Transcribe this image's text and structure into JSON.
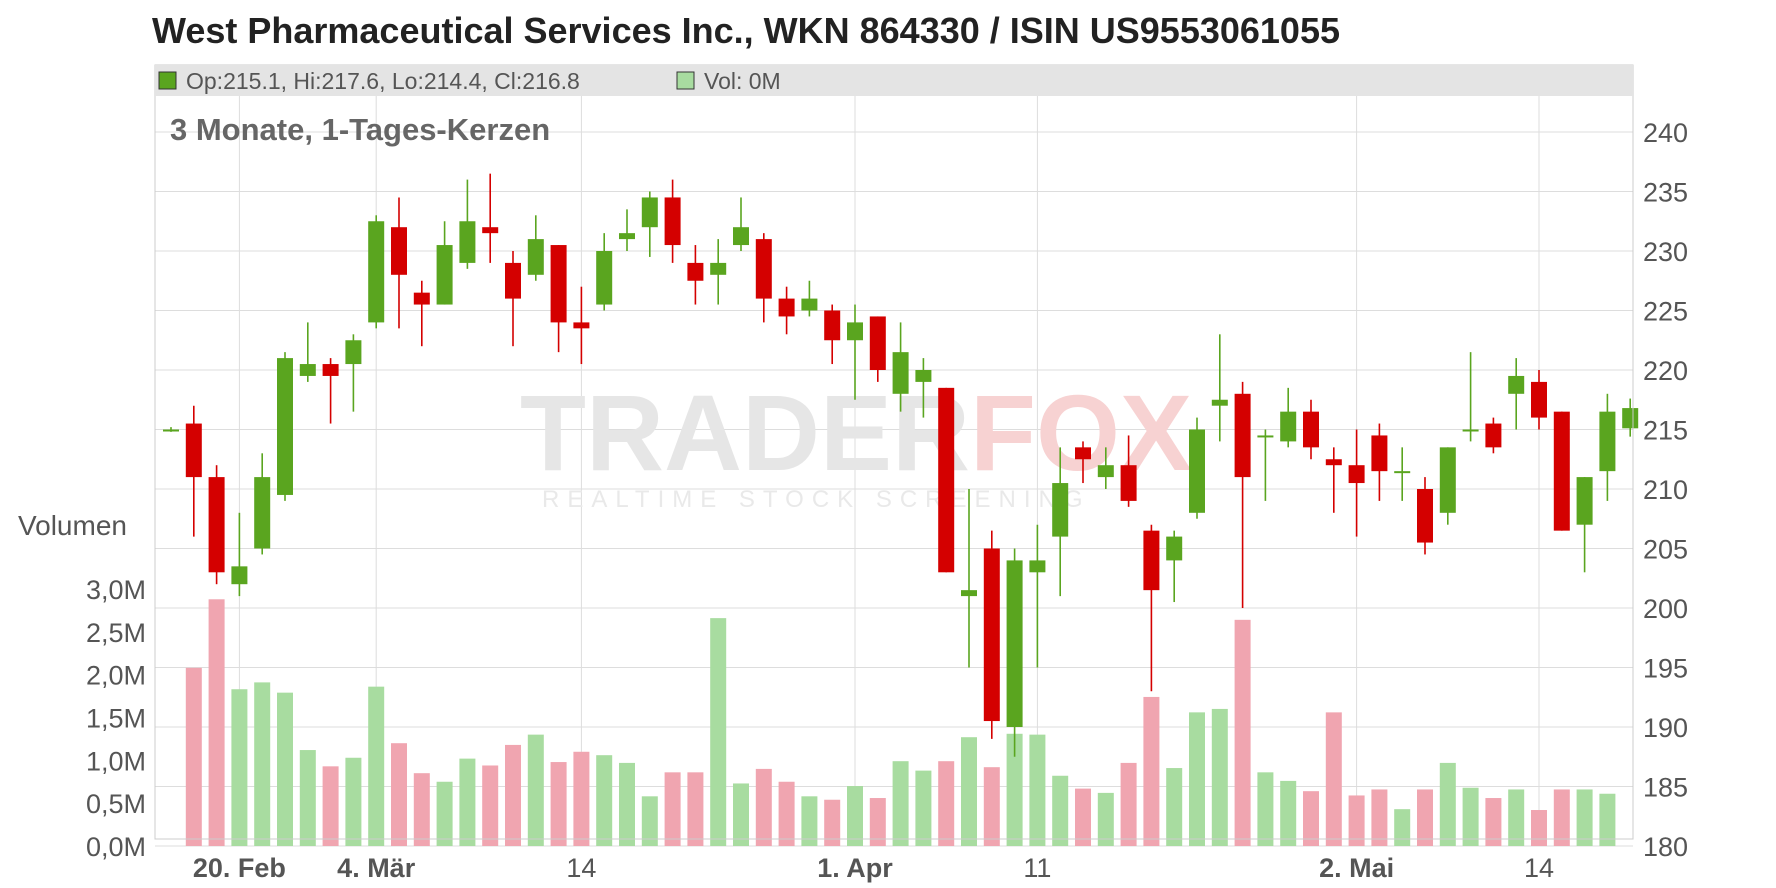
{
  "title": "West Pharmaceutical Services Inc., WKN 864330 / ISIN US9553061055",
  "colors": {
    "up": "#5aa51f",
    "down": "#d40000",
    "vol_up": "#a8dca0",
    "vol_down": "#f0a5b0",
    "grid": "#dddddd",
    "legend_bg": "#e4e4e4"
  },
  "legend": {
    "ohlc_label": "Op:215.1, Hi:217.6, Lo:214.4, Cl:216.8",
    "vol_label": "Vol: 0M"
  },
  "watermark": {
    "main_dark": "TRADER",
    "main_accent": "FOX",
    "sub": "REALTIME STOCK SCREENING"
  },
  "chart_data": {
    "type": "candlestick",
    "title": "West Pharmaceutical Services Inc., WKN 864330 / ISIN US9553061055",
    "subtitle": "3 Monate, 1-Tages-Kerzen",
    "volume_axis_label": "Volumen",
    "price_axis": {
      "min": 180,
      "max": 240,
      "ticks": [
        "180",
        "185",
        "190",
        "195",
        "200",
        "205",
        "210",
        "215",
        "220",
        "225",
        "230",
        "235",
        "240"
      ]
    },
    "volume_axis": {
      "min": 0,
      "max": 3.0,
      "unit": "M",
      "ticks": [
        "0,0M",
        "0,5M",
        "1,0M",
        "1,5M",
        "2,0M",
        "2,5M",
        "3,0M"
      ]
    },
    "x_ticks": [
      {
        "label": "20. Feb",
        "index": 3,
        "bold": true
      },
      {
        "label": "4. Mär",
        "index": 9,
        "bold": true
      },
      {
        "label": "14",
        "index": 18,
        "bold": false
      },
      {
        "label": "1. Apr",
        "index": 30,
        "bold": true
      },
      {
        "label": "11",
        "index": 38,
        "bold": false
      },
      {
        "label": "2. Mai",
        "index": 52,
        "bold": true
      },
      {
        "label": "14",
        "index": 60,
        "bold": false
      }
    ],
    "candles": [
      {
        "o": 215.0,
        "h": 215.2,
        "l": 214.8,
        "c": 215.0,
        "v": 0.0
      },
      {
        "o": 215.5,
        "h": 217.0,
        "l": 206.0,
        "c": 211.0,
        "v": 2.08
      },
      {
        "o": 211.0,
        "h": 212.0,
        "l": 202.0,
        "c": 203.0,
        "v": 2.88
      },
      {
        "o": 202.0,
        "h": 208.0,
        "l": 201.0,
        "c": 203.5,
        "v": 1.83
      },
      {
        "o": 205.0,
        "h": 213.0,
        "l": 204.5,
        "c": 211.0,
        "v": 1.91
      },
      {
        "o": 209.5,
        "h": 221.5,
        "l": 209.0,
        "c": 221.0,
        "v": 1.79
      },
      {
        "o": 219.5,
        "h": 224.0,
        "l": 219.0,
        "c": 220.5,
        "v": 1.12
      },
      {
        "o": 220.5,
        "h": 221.0,
        "l": 215.5,
        "c": 219.5,
        "v": 0.93
      },
      {
        "o": 220.5,
        "h": 223.0,
        "l": 216.5,
        "c": 222.5,
        "v": 1.03
      },
      {
        "o": 224.0,
        "h": 233.0,
        "l": 223.5,
        "c": 232.5,
        "v": 1.86
      },
      {
        "o": 232.0,
        "h": 234.5,
        "l": 223.5,
        "c": 228.0,
        "v": 1.2
      },
      {
        "o": 226.5,
        "h": 227.5,
        "l": 222.0,
        "c": 225.5,
        "v": 0.85
      },
      {
        "o": 225.5,
        "h": 232.5,
        "l": 225.5,
        "c": 230.5,
        "v": 0.75
      },
      {
        "o": 229.0,
        "h": 236.0,
        "l": 228.5,
        "c": 232.5,
        "v": 1.02
      },
      {
        "o": 232.0,
        "h": 236.5,
        "l": 229.0,
        "c": 231.5,
        "v": 0.94
      },
      {
        "o": 229.0,
        "h": 230.0,
        "l": 222.0,
        "c": 226.0,
        "v": 1.18
      },
      {
        "o": 228.0,
        "h": 233.0,
        "l": 227.5,
        "c": 231.0,
        "v": 1.3
      },
      {
        "o": 230.5,
        "h": 230.5,
        "l": 221.5,
        "c": 224.0,
        "v": 0.98
      },
      {
        "o": 224.0,
        "h": 227.0,
        "l": 220.5,
        "c": 223.5,
        "v": 1.1
      },
      {
        "o": 225.5,
        "h": 231.5,
        "l": 225.0,
        "c": 230.0,
        "v": 1.06
      },
      {
        "o": 231.0,
        "h": 233.5,
        "l": 230.0,
        "c": 231.5,
        "v": 0.97
      },
      {
        "o": 232.0,
        "h": 235.0,
        "l": 229.5,
        "c": 234.5,
        "v": 0.58
      },
      {
        "o": 234.5,
        "h": 236.0,
        "l": 229.0,
        "c": 230.5,
        "v": 0.86
      },
      {
        "o": 229.0,
        "h": 230.5,
        "l": 225.5,
        "c": 227.5,
        "v": 0.86
      },
      {
        "o": 228.0,
        "h": 231.0,
        "l": 225.5,
        "c": 229.0,
        "v": 2.66
      },
      {
        "o": 230.5,
        "h": 234.5,
        "l": 230.0,
        "c": 232.0,
        "v": 0.73
      },
      {
        "o": 231.0,
        "h": 231.5,
        "l": 224.0,
        "c": 226.0,
        "v": 0.9
      },
      {
        "o": 226.0,
        "h": 227.0,
        "l": 223.0,
        "c": 224.5,
        "v": 0.75
      },
      {
        "o": 225.0,
        "h": 227.5,
        "l": 224.5,
        "c": 226.0,
        "v": 0.58
      },
      {
        "o": 225.0,
        "h": 225.5,
        "l": 220.5,
        "c": 222.5,
        "v": 0.54
      },
      {
        "o": 222.5,
        "h": 225.5,
        "l": 217.5,
        "c": 224.0,
        "v": 0.7
      },
      {
        "o": 224.5,
        "h": 224.5,
        "l": 219.0,
        "c": 220.0,
        "v": 0.56
      },
      {
        "o": 218.0,
        "h": 224.0,
        "l": 216.5,
        "c": 221.5,
        "v": 0.99
      },
      {
        "o": 219.0,
        "h": 221.0,
        "l": 216.0,
        "c": 220.0,
        "v": 0.88
      },
      {
        "o": 218.5,
        "h": 218.5,
        "l": 203.0,
        "c": 203.0,
        "v": 0.99
      },
      {
        "o": 201.0,
        "h": 210.0,
        "l": 195.0,
        "c": 201.5,
        "v": 1.27
      },
      {
        "o": 205.0,
        "h": 206.5,
        "l": 189.0,
        "c": 190.5,
        "v": 0.92
      },
      {
        "o": 190.0,
        "h": 205.0,
        "l": 187.5,
        "c": 204.0,
        "v": 1.31
      },
      {
        "o": 203.0,
        "h": 207.0,
        "l": 195.0,
        "c": 204.0,
        "v": 1.3
      },
      {
        "o": 206.0,
        "h": 213.5,
        "l": 201.0,
        "c": 210.5,
        "v": 0.82
      },
      {
        "o": 213.5,
        "h": 214.0,
        "l": 210.5,
        "c": 212.5,
        "v": 0.67
      },
      {
        "o": 211.0,
        "h": 213.5,
        "l": 210.0,
        "c": 212.0,
        "v": 0.62
      },
      {
        "o": 212.0,
        "h": 214.5,
        "l": 208.5,
        "c": 209.0,
        "v": 0.97
      },
      {
        "o": 206.5,
        "h": 207.0,
        "l": 193.0,
        "c": 201.5,
        "v": 1.74
      },
      {
        "o": 204.0,
        "h": 206.5,
        "l": 200.5,
        "c": 206.0,
        "v": 0.91
      },
      {
        "o": 208.0,
        "h": 216.0,
        "l": 207.5,
        "c": 215.0,
        "v": 1.56
      },
      {
        "o": 217.0,
        "h": 223.0,
        "l": 214.0,
        "c": 217.5,
        "v": 1.6
      },
      {
        "o": 218.0,
        "h": 219.0,
        "l": 200.0,
        "c": 211.0,
        "v": 2.64
      },
      {
        "o": 214.5,
        "h": 215.0,
        "l": 209.0,
        "c": 214.5,
        "v": 0.86
      },
      {
        "o": 214.0,
        "h": 218.5,
        "l": 213.5,
        "c": 216.5,
        "v": 0.76
      },
      {
        "o": 216.5,
        "h": 217.5,
        "l": 212.5,
        "c": 213.5,
        "v": 0.64
      },
      {
        "o": 212.5,
        "h": 213.5,
        "l": 208.0,
        "c": 212.0,
        "v": 1.56
      },
      {
        "o": 212.0,
        "h": 215.0,
        "l": 206.0,
        "c": 210.5,
        "v": 0.59
      },
      {
        "o": 214.5,
        "h": 215.5,
        "l": 209.0,
        "c": 211.5,
        "v": 0.66
      },
      {
        "o": 211.5,
        "h": 213.5,
        "l": 209.0,
        "c": 211.5,
        "v": 0.43
      },
      {
        "o": 210.0,
        "h": 211.0,
        "l": 204.5,
        "c": 205.5,
        "v": 0.66
      },
      {
        "o": 208.0,
        "h": 213.5,
        "l": 207.0,
        "c": 213.5,
        "v": 0.97
      },
      {
        "o": 215.0,
        "h": 221.5,
        "l": 214.0,
        "c": 215.0,
        "v": 0.68
      },
      {
        "o": 215.5,
        "h": 216.0,
        "l": 213.0,
        "c": 213.5,
        "v": 0.56
      },
      {
        "o": 218.0,
        "h": 221.0,
        "l": 215.0,
        "c": 219.5,
        "v": 0.66
      },
      {
        "o": 219.0,
        "h": 220.0,
        "l": 215.0,
        "c": 216.0,
        "v": 0.42
      },
      {
        "o": 216.5,
        "h": 216.5,
        "l": 206.5,
        "c": 206.5,
        "v": 0.66
      },
      {
        "o": 207.0,
        "h": 211.0,
        "l": 203.0,
        "c": 211.0,
        "v": 0.66
      },
      {
        "o": 211.5,
        "h": 218.0,
        "l": 209.0,
        "c": 216.5,
        "v": 0.61
      },
      {
        "o": 215.1,
        "h": 217.6,
        "l": 214.4,
        "c": 216.8,
        "v": 0.0
      }
    ]
  }
}
